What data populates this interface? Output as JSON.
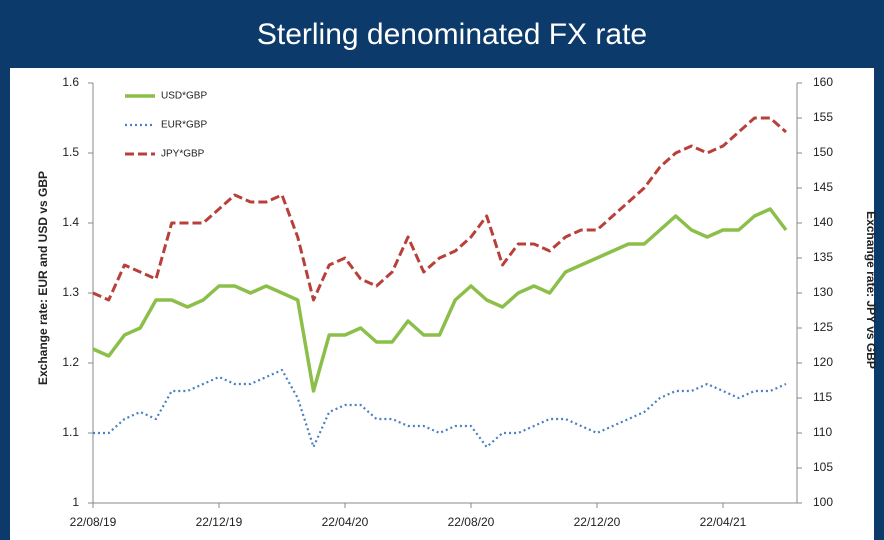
{
  "chart_data": {
    "type": "line",
    "title": "Sterling denominated FX rate",
    "y_label": "Exchange rate: EUR and USD vs GBP",
    "y2_label": "Exchange rate: JPY vs GBP",
    "categories": [
      "22/08/19",
      null,
      null,
      null,
      null,
      null,
      null,
      null,
      "22/12/19",
      null,
      null,
      null,
      null,
      null,
      null,
      null,
      "22/04/20",
      null,
      null,
      null,
      null,
      null,
      null,
      null,
      "22/08/20",
      null,
      null,
      null,
      null,
      null,
      null,
      null,
      "22/12/20",
      null,
      null,
      null,
      null,
      null,
      null,
      null,
      "22/04/21",
      null,
      null,
      null,
      null
    ],
    "series": [
      {
        "name": "USD*GBP",
        "color": "#8cbf4a",
        "dash": "solid",
        "values": [
          1.22,
          1.21,
          1.24,
          1.25,
          1.29,
          1.29,
          1.28,
          1.29,
          1.31,
          1.31,
          1.3,
          1.31,
          1.3,
          1.29,
          1.16,
          1.24,
          1.24,
          1.25,
          1.23,
          1.23,
          1.26,
          1.24,
          1.24,
          1.29,
          1.31,
          1.29,
          1.28,
          1.3,
          1.31,
          1.3,
          1.33,
          1.34,
          1.35,
          1.36,
          1.37,
          1.37,
          1.39,
          1.41,
          1.39,
          1.38,
          1.39,
          1.39,
          1.41,
          1.42,
          1.39
        ]
      },
      {
        "name": "EUR*GBP",
        "color": "#4a7fc0",
        "dash": "dotted",
        "values": [
          1.1,
          1.1,
          1.12,
          1.13,
          1.12,
          1.16,
          1.16,
          1.17,
          1.18,
          1.17,
          1.17,
          1.18,
          1.19,
          1.15,
          1.08,
          1.13,
          1.14,
          1.14,
          1.12,
          1.12,
          1.11,
          1.11,
          1.1,
          1.11,
          1.11,
          1.08,
          1.1,
          1.1,
          1.11,
          1.12,
          1.12,
          1.11,
          1.1,
          1.11,
          1.12,
          1.13,
          1.15,
          1.16,
          1.16,
          1.17,
          1.16,
          1.15,
          1.16,
          1.16,
          1.17
        ]
      },
      {
        "name": "JPY*GBP",
        "color": "#b8403b",
        "dash": "dashed",
        "axis": "y2",
        "values": [
          130,
          129,
          134,
          133,
          132,
          140,
          140,
          140,
          142,
          144,
          143,
          143,
          144,
          138,
          129,
          134,
          135,
          132,
          131,
          133,
          138,
          133,
          135,
          136,
          138,
          141,
          134,
          137,
          137,
          136,
          138,
          139,
          139,
          141,
          143,
          145,
          148,
          150,
          151,
          150,
          151,
          153,
          155,
          155,
          153
        ]
      }
    ],
    "ylim": [
      1,
      1.6
    ],
    "yticks": [
      1,
      1.1,
      1.2,
      1.3,
      1.4,
      1.5,
      1.6
    ],
    "y2lim": [
      100,
      160
    ],
    "y2ticks": [
      100,
      105,
      110,
      115,
      120,
      125,
      130,
      135,
      140,
      145,
      150,
      155,
      160
    ],
    "legend": "upper left"
  }
}
